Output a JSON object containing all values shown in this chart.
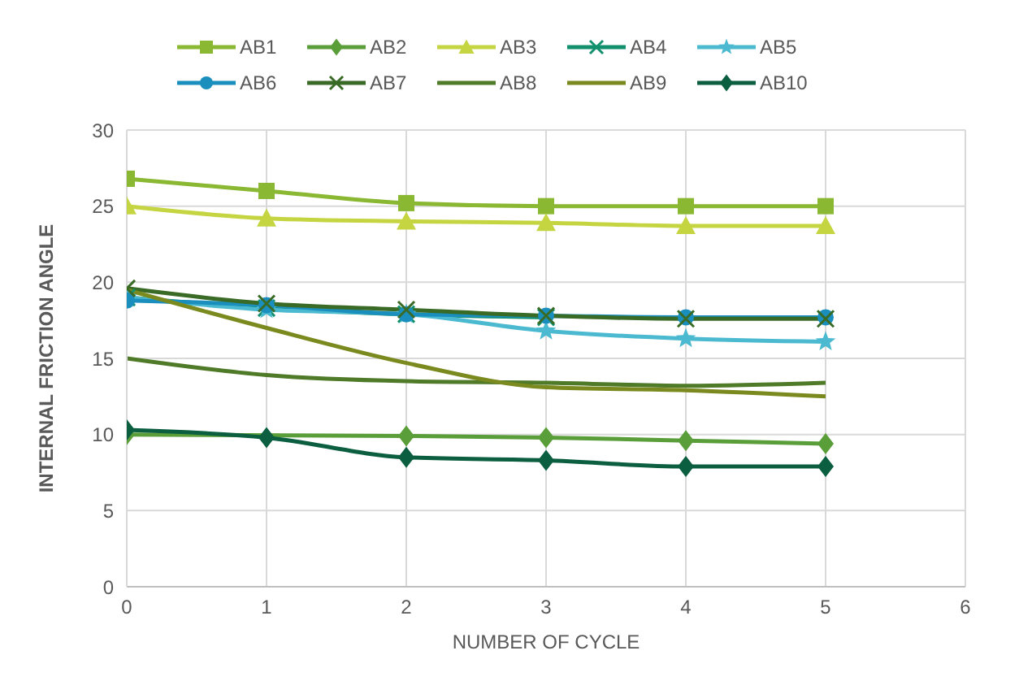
{
  "chart_data": {
    "type": "line",
    "xlabel": "NUMBER OF CYCLE",
    "ylabel": "INTERNAL FRICTION ANGLE",
    "x": [
      0,
      1,
      2,
      3,
      4,
      5
    ],
    "xlim": [
      0,
      6
    ],
    "xticks": [
      0,
      1,
      2,
      3,
      4,
      5,
      6
    ],
    "ylim": [
      0,
      30
    ],
    "yticks": [
      0,
      5,
      10,
      15,
      20,
      25,
      30
    ],
    "grid": true,
    "legend": "top",
    "series": [
      {
        "name": "AB1",
        "color": "#8ab833",
        "marker": "square",
        "values": [
          26.8,
          26.0,
          25.2,
          25.0,
          25.0,
          25.0
        ]
      },
      {
        "name": "AB2",
        "color": "#5a9e3a",
        "marker": "diamond",
        "values": [
          10.0,
          null,
          9.9,
          9.8,
          9.6,
          9.4
        ]
      },
      {
        "name": "AB3",
        "color": "#c5d542",
        "marker": "triangle",
        "values": [
          25.0,
          24.2,
          24.0,
          23.9,
          23.7,
          23.7
        ]
      },
      {
        "name": "AB4",
        "color": "#12906d",
        "marker": "cross",
        "values": [
          19.0,
          18.3,
          17.9,
          17.7,
          null,
          null
        ]
      },
      {
        "name": "AB5",
        "color": "#4bbad0",
        "marker": "star",
        "values": [
          19.0,
          18.2,
          17.9,
          16.8,
          16.3,
          16.1
        ]
      },
      {
        "name": "AB6",
        "color": "#1a8fbd",
        "marker": "circle",
        "values": [
          18.8,
          18.5,
          17.9,
          17.8,
          17.7,
          17.7
        ]
      },
      {
        "name": "AB7",
        "color": "#3a6b26",
        "marker": "cross",
        "values": [
          19.6,
          18.6,
          18.2,
          17.8,
          17.6,
          17.6
        ]
      },
      {
        "name": "AB8",
        "color": "#4f7a28",
        "marker": "none",
        "values": [
          15.0,
          13.9,
          13.5,
          13.4,
          13.2,
          13.4
        ]
      },
      {
        "name": "AB9",
        "color": "#7a8a1e",
        "marker": "none",
        "values": [
          19.5,
          17.0,
          14.7,
          13.1,
          12.9,
          12.5
        ]
      },
      {
        "name": "AB10",
        "color": "#0b5e3f",
        "marker": "diamond",
        "values": [
          10.3,
          9.8,
          8.5,
          8.3,
          7.9,
          7.9
        ]
      }
    ]
  }
}
